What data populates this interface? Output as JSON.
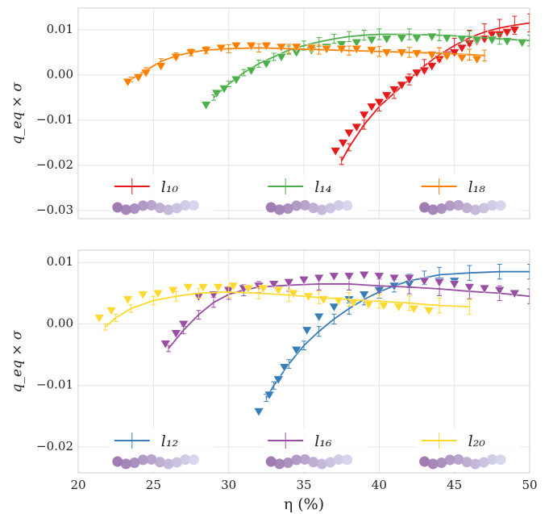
{
  "chart_data": [
    {
      "type": "line",
      "ylabel": "q_eq × σ",
      "grid": true,
      "legend": "lower center",
      "xlim": [
        20,
        50
      ],
      "xticks": [
        20,
        25,
        30,
        35,
        40,
        45,
        50
      ],
      "xtick_labels": false,
      "ylim": [
        -0.0318,
        0.0148
      ],
      "yticks": [
        {
          "value": -0.03,
          "label": "−0.03"
        },
        {
          "value": -0.02,
          "label": "−0.02"
        },
        {
          "value": -0.01,
          "label": "−0.01"
        },
        {
          "value": 0,
          "label": "0.00"
        },
        {
          "value": 0.01,
          "label": "0.01"
        }
      ],
      "series": [
        {
          "name": "l₁₀",
          "color": "#e41a1c",
          "markers": {
            "x": [
              37.1,
              37.6,
              38.0,
              38.5,
              39,
              39.5,
              40,
              40.5,
              41,
              41.5,
              42,
              42.5,
              43,
              43.5,
              44,
              44.5,
              45,
              45.5,
              46,
              46.5,
              47,
              47.5,
              48,
              48.5,
              49
            ],
            "values": [
              -0.0168,
              -0.015,
              -0.0128,
              -0.0115,
              -0.0088,
              -0.007,
              -0.006,
              -0.0045,
              -0.0032,
              -0.0022,
              -0.001,
              0.0005,
              0.001,
              0.002,
              0.0035,
              0.0045,
              0.005,
              0.006,
              0.007,
              0.0075,
              0.008,
              0.009,
              0.009,
              0.0095,
              0.01
            ]
          },
          "curve": {
            "x": [
              37.5,
              38,
              39,
              40,
              41,
              42,
              43,
              44,
              45,
              46,
              47,
              48,
              49,
              50
            ],
            "values": [
              -0.019,
              -0.016,
              -0.011,
              -0.007,
              -0.004,
              -0.001,
              0.002,
              0.0045,
              0.0065,
              0.0082,
              0.0095,
              0.0104,
              0.011,
              0.0115
            ],
            "errors": [
              0.0008,
              0.0008,
              0.001,
              0.001,
              0.0012,
              0.0012,
              0.0014,
              0.0015,
              0.0016,
              0.0017,
              0.0018,
              0.0019,
              0.002,
              0.002
            ]
          }
        },
        {
          "name": "l₁₄",
          "color": "#4daf4a",
          "markers": {
            "x": [
              28.5,
              29.2,
              29.7,
              30.5,
              31.5,
              32.5,
              33.5,
              34.5,
              35.5,
              36.5,
              37.5,
              38.5,
              39.5,
              40.5,
              41.5,
              42.5,
              43.5,
              44.5,
              45.5,
              46.5,
              47.5,
              48.5,
              49.5
            ],
            "values": [
              -0.0066,
              -0.004,
              -0.003,
              -0.001,
              0.001,
              0.0025,
              0.004,
              0.005,
              0.0055,
              0.0062,
              0.0068,
              0.0072,
              0.0078,
              0.008,
              0.0082,
              0.0082,
              0.0085,
              0.0082,
              0.008,
              0.0078,
              0.0078,
              0.0075,
              0.0072
            ]
          },
          "curve": {
            "x": [
              29,
              30,
              31,
              32,
              33,
              34,
              35,
              36,
              37,
              38,
              39,
              40,
              42,
              44,
              46,
              48,
              50
            ],
            "values": [
              -0.005,
              -0.002,
              0.0005,
              0.0025,
              0.004,
              0.0055,
              0.0065,
              0.0073,
              0.008,
              0.0085,
              0.0088,
              0.009,
              0.009,
              0.0088,
              0.0085,
              0.008,
              0.0076
            ],
            "errors": [
              0.0006,
              0.0006,
              0.0007,
              0.0008,
              0.0008,
              0.0009,
              0.001,
              0.001,
              0.001,
              0.0011,
              0.0011,
              0.0012,
              0.0012,
              0.0012,
              0.0012,
              0.0012,
              0.0012
            ]
          }
        },
        {
          "name": "l₁₈",
          "color": "#ff7f00",
          "markers": {
            "x": [
              23.3,
              24,
              24.5,
              25.5,
              26.5,
              27.5,
              28.5,
              29.5,
              30.5,
              31.5,
              32.5,
              33.5,
              34.5,
              35.5,
              36.5,
              37.5,
              38.5,
              39.5,
              40.5,
              41.5,
              42.5,
              43.5,
              44.5,
              45.5,
              46.5
            ],
            "values": [
              -0.0015,
              -0.0005,
              0.0005,
              0.002,
              0.004,
              0.005,
              0.0055,
              0.006,
              0.0065,
              0.0065,
              0.0065,
              0.0062,
              0.0062,
              0.006,
              0.0058,
              0.0058,
              0.0058,
              0.0055,
              0.005,
              0.005,
              0.0048,
              0.0045,
              0.0042,
              0.0038,
              0.0035
            ]
          },
          "curve": {
            "x": [
              23.5,
              24.5,
              25.5,
              26.5,
              27.5,
              28.5,
              30,
              32,
              34,
              36,
              38,
              40,
              42,
              44,
              46,
              47
            ],
            "values": [
              -0.001,
              0.001,
              0.003,
              0.0042,
              0.005,
              0.0055,
              0.0058,
              0.006,
              0.0058,
              0.0056,
              0.0054,
              0.0052,
              0.005,
              0.0048,
              0.0045,
              0.0043
            ],
            "errors": [
              0.0005,
              0.0006,
              0.0006,
              0.0007,
              0.0008,
              0.0008,
              0.0009,
              0.0009,
              0.001,
              0.001,
              0.001,
              0.0011,
              0.0011,
              0.0012,
              0.0012,
              0.0012
            ]
          }
        }
      ]
    },
    {
      "type": "line",
      "ylabel": "q_eq × σ",
      "xlabel": "η (%)",
      "grid": true,
      "legend": "lower center",
      "xlim": [
        20,
        50
      ],
      "xticks": [
        20,
        25,
        30,
        35,
        40,
        45,
        50
      ],
      "ylim": [
        -0.0242,
        0.012
      ],
      "yticks": [
        {
          "value": -0.02,
          "label": "−0.02"
        },
        {
          "value": -0.01,
          "label": "−0.01"
        },
        {
          "value": 0,
          "label": "0.00"
        },
        {
          "value": 0.01,
          "label": "0.01"
        }
      ],
      "series": [
        {
          "name": "l₁₂",
          "color": "#377eb8",
          "markers": {
            "x": [
              32,
              32.7,
              33.3,
              33.7,
              34.5,
              35.2,
              36,
              37,
              38,
              39,
              40,
              41,
              42,
              43,
              44,
              45
            ],
            "values": [
              -0.0142,
              -0.0115,
              -0.009,
              -0.007,
              -0.0042,
              -0.001,
              0.0012,
              0.0028,
              0.004,
              0.0048,
              0.0055,
              0.0062,
              0.0065,
              0.007,
              0.007,
              0.007
            ]
          },
          "curve": {
            "x": [
              32.5,
              33,
              34,
              35,
              36,
              37,
              38,
              39,
              40,
              41,
              42,
              43,
              44,
              46,
              48,
              50
            ],
            "values": [
              -0.012,
              -0.01,
              -0.0065,
              -0.0035,
              -0.0012,
              0.0008,
              0.0025,
              0.004,
              0.0052,
              0.0062,
              0.007,
              0.0075,
              0.008,
              0.0083,
              0.0085,
              0.0085
            ],
            "errors": [
              0.0006,
              0.0006,
              0.0007,
              0.0007,
              0.0008,
              0.0008,
              0.0009,
              0.0009,
              0.001,
              0.001,
              0.0011,
              0.0011,
              0.0012,
              0.0012,
              0.0012,
              0.0012
            ]
          }
        },
        {
          "name": "l₁₆",
          "color": "#984ea3",
          "markers": {
            "x": [
              25.8,
              26.5,
              27,
              28,
              29,
              30,
              31,
              32,
              33,
              34,
              35,
              36,
              37,
              38,
              39,
              40,
              41,
              42,
              43,
              44,
              45,
              46,
              47,
              48,
              49
            ],
            "values": [
              -0.0032,
              -0.0015,
              0,
              0.0045,
              0.0048,
              0.0055,
              0.0058,
              0.0062,
              0.0065,
              0.0068,
              0.0072,
              0.0075,
              0.0078,
              0.0078,
              0.008,
              0.0078,
              0.0075,
              0.0075,
              0.007,
              0.0068,
              0.0065,
              0.006,
              0.0058,
              0.0055,
              0.005
            ]
          },
          "curve": {
            "x": [
              26,
              27,
              28,
              29,
              30,
              31,
              32,
              34,
              36,
              38,
              40,
              42,
              44,
              46,
              48,
              50
            ],
            "values": [
              -0.004,
              -0.001,
              0.0015,
              0.0035,
              0.0048,
              0.0055,
              0.006,
              0.0063,
              0.0065,
              0.0065,
              0.0062,
              0.006,
              0.0057,
              0.0053,
              0.005,
              0.0045
            ],
            "errors": [
              0.0005,
              0.0006,
              0.0007,
              0.0008,
              0.0008,
              0.0009,
              0.0009,
              0.001,
              0.001,
              0.001,
              0.0011,
              0.0011,
              0.0011,
              0.0012,
              0.0012,
              0.0012
            ]
          }
        },
        {
          "name": "l₂₀",
          "color": "#ffd92f",
          "markers": {
            "x": [
              21.4,
              22.2,
              23.3,
              24.3,
              25.3,
              26.3,
              27.3,
              28.3,
              29.3,
              30.3,
              31.3,
              32.3,
              33.3,
              34.3,
              35.3,
              36.3,
              37.3,
              38.3,
              39.3,
              40.3,
              41.3,
              42.3,
              43.3
            ],
            "values": [
              0.001,
              0.0022,
              0.004,
              0.0048,
              0.005,
              0.0055,
              0.006,
              0.006,
              0.006,
              0.0062,
              0.0058,
              0.0058,
              0.0055,
              0.005,
              0.0045,
              0.004,
              0.0038,
              0.0035,
              0.0032,
              0.003,
              0.0028,
              0.0025,
              0.0022
            ]
          },
          "curve": {
            "x": [
              21.8,
              22.5,
              23.5,
              25,
              26.5,
              28,
              30,
              32,
              34,
              36,
              38,
              40,
              42,
              44,
              46
            ],
            "values": [
              -0.0005,
              0.001,
              0.0025,
              0.0038,
              0.0045,
              0.005,
              0.0052,
              0.005,
              0.0047,
              0.0043,
              0.004,
              0.0037,
              0.0034,
              0.003,
              0.0028
            ],
            "errors": [
              0.0005,
              0.0006,
              0.0006,
              0.0007,
              0.0008,
              0.0008,
              0.0009,
              0.0009,
              0.001,
              0.001,
              0.0011,
              0.0011,
              0.0012,
              0.0012,
              0.0012
            ]
          }
        }
      ]
    }
  ]
}
